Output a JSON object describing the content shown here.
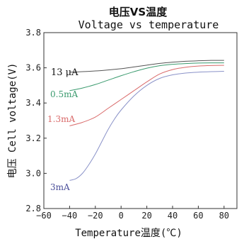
{
  "chart_data": {
    "type": "line",
    "title": "电压VS温度",
    "subtitle": "Voltage vs temperature",
    "xlabel": "Temperature温度(℃)",
    "ylabel": "电压 Cell voltage(V)",
    "xlim": [
      -60,
      90
    ],
    "ylim": [
      2.8,
      3.8
    ],
    "x_ticks": [
      "−60",
      "−40",
      "−20",
      "0",
      "20",
      "40",
      "60",
      "80"
    ],
    "y_ticks": [
      "2.8",
      "3.0",
      "3.2",
      "3.4",
      "3.6",
      "3.8"
    ],
    "x_tick_values": [
      -60,
      -40,
      -20,
      0,
      20,
      40,
      60,
      80
    ],
    "y_tick_values": [
      2.8,
      3.0,
      3.2,
      3.4,
      3.6,
      3.8
    ],
    "series": [
      {
        "name": "13 μA",
        "color": "#555555",
        "x": [
          -40,
          -30,
          -20,
          -10,
          0,
          10,
          20,
          30,
          40,
          50,
          60,
          70,
          80
        ],
        "y": [
          3.575,
          3.578,
          3.582,
          3.588,
          3.595,
          3.605,
          3.615,
          3.625,
          3.632,
          3.637,
          3.64,
          3.642,
          3.642
        ]
      },
      {
        "name": "0.5mA",
        "color": "#3a9a6e",
        "x": [
          -40,
          -30,
          -20,
          -10,
          0,
          10,
          20,
          30,
          40,
          50,
          60,
          70,
          80
        ],
        "y": [
          3.47,
          3.485,
          3.505,
          3.53,
          3.555,
          3.578,
          3.598,
          3.612,
          3.62,
          3.624,
          3.627,
          3.628,
          3.628
        ]
      },
      {
        "name": "1.3mA",
        "color": "#d96a6a",
        "x": [
          -40,
          -30,
          -20,
          -10,
          0,
          10,
          20,
          30,
          40,
          50,
          60,
          70,
          80
        ],
        "y": [
          3.27,
          3.29,
          3.32,
          3.37,
          3.42,
          3.47,
          3.52,
          3.565,
          3.59,
          3.603,
          3.61,
          3.613,
          3.614
        ]
      },
      {
        "name": "3mA",
        "color": "#8a92c8",
        "x": [
          -40,
          -35,
          -30,
          -25,
          -20,
          -15,
          -10,
          -5,
          0,
          10,
          20,
          30,
          40,
          50,
          60,
          70,
          80
        ],
        "y": [
          2.96,
          2.97,
          3.0,
          3.05,
          3.11,
          3.18,
          3.25,
          3.31,
          3.36,
          3.44,
          3.5,
          3.54,
          3.56,
          3.57,
          3.575,
          3.578,
          3.58
        ]
      }
    ],
    "grid": false
  }
}
